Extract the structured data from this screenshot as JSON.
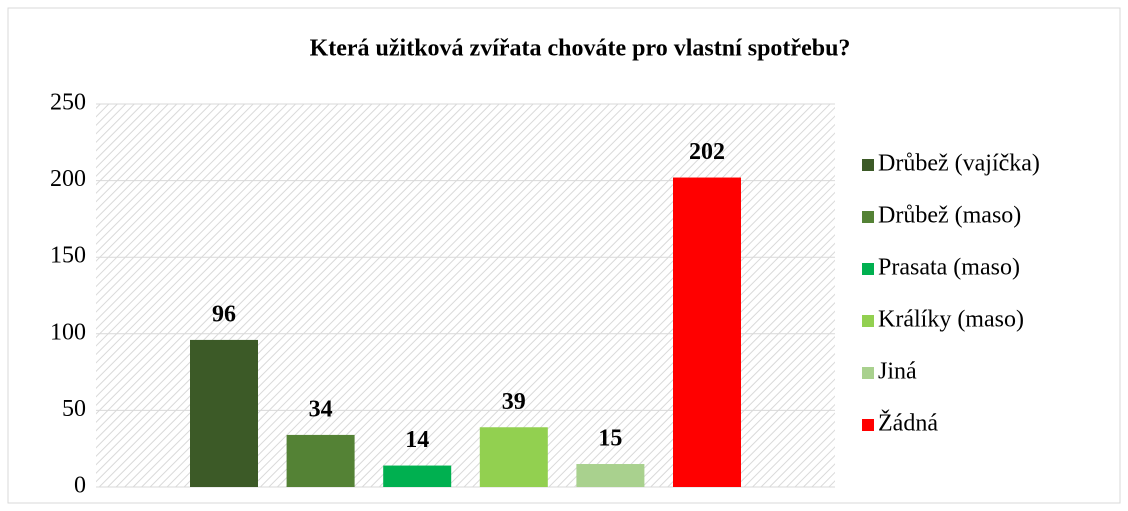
{
  "chart_data": {
    "type": "bar",
    "title": "Která užitková zvířata chováte pro vlastní spotřebu?",
    "series": [
      {
        "name": "Drůbež (vajíčka)",
        "color": "#3c5a27",
        "values": [
          96
        ]
      },
      {
        "name": "Drůbež (maso)",
        "color": "#548235",
        "values": [
          34
        ]
      },
      {
        "name": "Prasata (maso)",
        "color": "#00b050",
        "values": [
          14
        ]
      },
      {
        "name": "Králíky (maso)",
        "color": "#92d050",
        "values": [
          39
        ]
      },
      {
        "name": "Jiná",
        "color": "#a9d18e",
        "values": [
          15
        ]
      },
      {
        "name": "Žádná",
        "color": "#ff0000",
        "values": [
          202
        ]
      }
    ],
    "ylim": [
      0,
      250
    ],
    "yticks": [
      0,
      50,
      100,
      150,
      200,
      250
    ],
    "grid": true,
    "legend": "right"
  }
}
